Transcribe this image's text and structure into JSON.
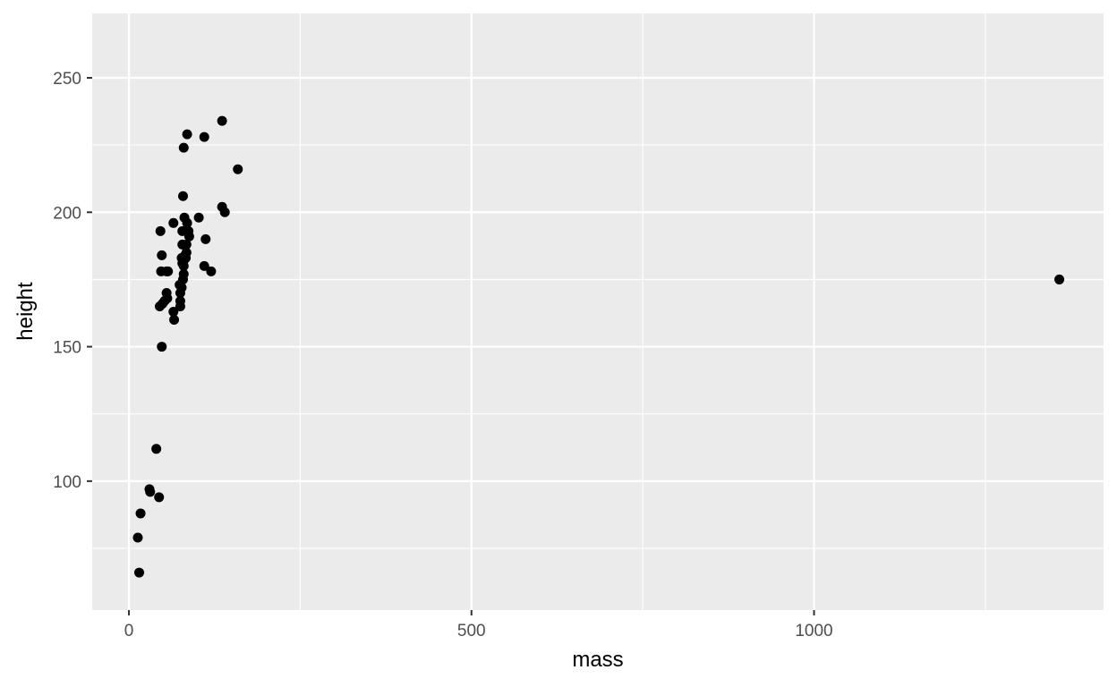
{
  "chart_data": {
    "type": "scatter",
    "xlabel": "mass",
    "ylabel": "height",
    "xlim": [
      -53.6,
      1422.6
    ],
    "ylim": [
      52.05,
      273.95
    ],
    "x_ticks": [
      0,
      500,
      1000
    ],
    "x_tick_labels": [
      "0",
      "500",
      "1000"
    ],
    "x_minor_ticks": [
      250,
      750,
      1250
    ],
    "y_ticks": [
      100,
      150,
      200,
      250
    ],
    "y_tick_labels": [
      "100",
      "150",
      "200",
      "250"
    ],
    "y_minor_ticks": [
      75,
      125,
      175,
      225
    ],
    "grid": true,
    "legend": "none",
    "colors": {
      "panel": "#ebebeb",
      "grid": "#ffffff",
      "point": "#000000",
      "tick": "#4d4d4d",
      "title": "#000000"
    },
    "points": [
      {
        "x": 13,
        "y": 79
      },
      {
        "x": 15,
        "y": 66
      },
      {
        "x": 17,
        "y": 88
      },
      {
        "x": 30,
        "y": 97
      },
      {
        "x": 31,
        "y": 96
      },
      {
        "x": 40,
        "y": 112
      },
      {
        "x": 44,
        "y": 94
      },
      {
        "x": 45,
        "y": 165
      },
      {
        "x": 46,
        "y": 193
      },
      {
        "x": 47,
        "y": 178
      },
      {
        "x": 48,
        "y": 150
      },
      {
        "x": 48,
        "y": 184
      },
      {
        "x": 49,
        "y": 166
      },
      {
        "x": 52,
        "y": 167
      },
      {
        "x": 55,
        "y": 178
      },
      {
        "x": 55,
        "y": 170
      },
      {
        "x": 56,
        "y": 168
      },
      {
        "x": 57,
        "y": 178
      },
      {
        "x": 65,
        "y": 196
      },
      {
        "x": 65,
        "y": 163
      },
      {
        "x": 66,
        "y": 160
      },
      {
        "x": 74,
        "y": 173
      },
      {
        "x": 75,
        "y": 165
      },
      {
        "x": 75,
        "y": 167
      },
      {
        "x": 75,
        "y": 170
      },
      {
        "x": 77,
        "y": 183
      },
      {
        "x": 77,
        "y": 172
      },
      {
        "x": 78,
        "y": 181
      },
      {
        "x": 78,
        "y": 188
      },
      {
        "x": 78,
        "y": 193
      },
      {
        "x": 79,
        "y": 206
      },
      {
        "x": 79,
        "y": 175
      },
      {
        "x": 80,
        "y": 180
      },
      {
        "x": 80,
        "y": 177
      },
      {
        "x": 80,
        "y": 182
      },
      {
        "x": 80,
        "y": 224
      },
      {
        "x": 81,
        "y": 198
      },
      {
        "x": 82,
        "y": 184
      },
      {
        "x": 83,
        "y": 183
      },
      {
        "x": 84,
        "y": 188
      },
      {
        "x": 84,
        "y": 185
      },
      {
        "x": 85,
        "y": 196
      },
      {
        "x": 85,
        "y": 229
      },
      {
        "x": 87,
        "y": 193
      },
      {
        "x": 88,
        "y": 191
      },
      {
        "x": 102,
        "y": 198
      },
      {
        "x": 110,
        "y": 180
      },
      {
        "x": 110,
        "y": 228
      },
      {
        "x": 112,
        "y": 190
      },
      {
        "x": 120,
        "y": 178
      },
      {
        "x": 136,
        "y": 202
      },
      {
        "x": 136,
        "y": 234
      },
      {
        "x": 140,
        "y": 200
      },
      {
        "x": 159,
        "y": 216
      },
      {
        "x": 1358,
        "y": 175
      }
    ]
  }
}
